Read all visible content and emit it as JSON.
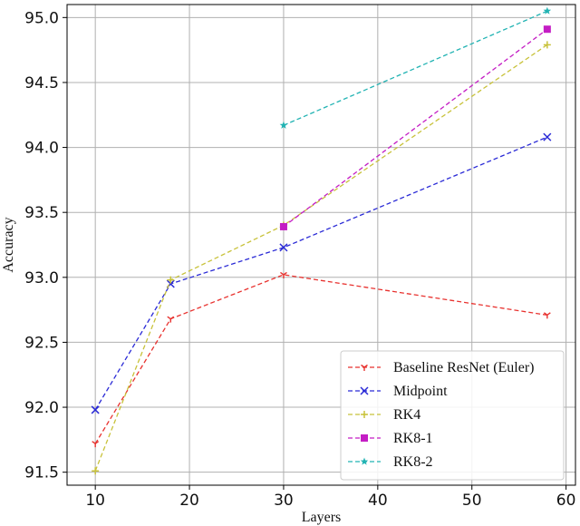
{
  "chart_data": {
    "type": "line",
    "xlabel": "Layers",
    "ylabel": "Accuracy",
    "xlim": [
      7,
      61
    ],
    "ylim": [
      91.4,
      95.1
    ],
    "xticks": [
      10,
      20,
      30,
      40,
      50,
      60
    ],
    "yticks": [
      91.5,
      92.0,
      92.5,
      93.0,
      93.5,
      94.0,
      94.5,
      95.0
    ],
    "xtick_labels": [
      "10",
      "20",
      "30",
      "40",
      "50",
      "60"
    ],
    "ytick_labels": [
      "91.5",
      "92.0",
      "92.5",
      "93.0",
      "93.5",
      "94.0",
      "94.5",
      "95.0"
    ],
    "grid": true,
    "legend_position": "lower-right",
    "series": [
      {
        "name": "Baseline ResNet (Euler)",
        "color": "#e8322f",
        "marker": "tri_down",
        "linestyle": "dashed",
        "x": [
          10,
          18,
          30,
          58
        ],
        "y": [
          91.72,
          92.68,
          93.02,
          92.71
        ]
      },
      {
        "name": "Midpoint",
        "color": "#2a2ad6",
        "marker": "x",
        "linestyle": "dashed",
        "x": [
          10,
          18,
          30,
          58
        ],
        "y": [
          91.98,
          92.95,
          93.23,
          94.08
        ]
      },
      {
        "name": "RK4",
        "color": "#c8c23a",
        "marker": "plus",
        "linestyle": "dashed",
        "x": [
          10,
          18,
          30,
          58
        ],
        "y": [
          91.51,
          92.98,
          93.4,
          94.79
        ]
      },
      {
        "name": "RK8-1",
        "color": "#c41dc4",
        "marker": "square",
        "linestyle": "dashed",
        "x": [
          30,
          58
        ],
        "y": [
          93.39,
          94.91
        ]
      },
      {
        "name": "RK8-2",
        "color": "#22b3b3",
        "marker": "star",
        "linestyle": "dashed",
        "x": [
          30,
          58
        ],
        "y": [
          94.17,
          95.05
        ]
      }
    ]
  }
}
